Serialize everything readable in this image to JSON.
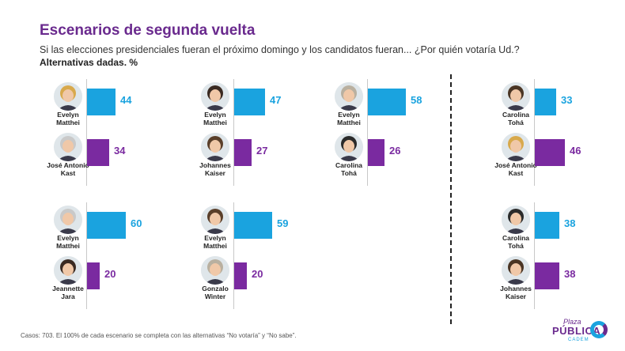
{
  "header": {
    "title": "Escenarios de segunda vuelta",
    "subtitle": "Si las elecciones presidenciales fueran el próximo domingo y los candidatos fueran... ¿Por quién votaría Ud.?",
    "note": "Alternativas dadas. %"
  },
  "footer": "Casos: 703. El 100% de cada escenario se completa con las alternativas “No votaría” y “No sabe”.",
  "logo": {
    "line1": "Plaza",
    "line2": "PÚBLICA",
    "line3": "CADEM"
  },
  "colors": {
    "blue": "#1aa3df",
    "purple": "#7a2aa0",
    "title": "#6a2a8e"
  },
  "chart_data": {
    "type": "bar",
    "orientation": "horizontal",
    "unit": "%",
    "scenarios": [
      {
        "candidates": [
          {
            "name": [
              "Evelyn",
              "Matthei"
            ],
            "value": 44
          },
          {
            "name": [
              "José Antonio",
              "Kast"
            ],
            "value": 34
          }
        ]
      },
      {
        "candidates": [
          {
            "name": [
              "Evelyn",
              "Matthei"
            ],
            "value": 47
          },
          {
            "name": [
              "Johannes",
              "Kaiser"
            ],
            "value": 27
          }
        ]
      },
      {
        "candidates": [
          {
            "name": [
              "Evelyn",
              "Matthei"
            ],
            "value": 58
          },
          {
            "name": [
              "Carolina",
              "Tohá"
            ],
            "value": 26
          }
        ]
      },
      {
        "candidates": [
          {
            "name": [
              "Carolina",
              "Tohá"
            ],
            "value": 33
          },
          {
            "name": [
              "José Antonio",
              "Kast"
            ],
            "value": 46
          }
        ]
      },
      {
        "candidates": [
          {
            "name": [
              "Evelyn",
              "Matthei"
            ],
            "value": 60
          },
          {
            "name": [
              "Jeannette",
              "Jara"
            ],
            "value": 20
          }
        ]
      },
      {
        "candidates": [
          {
            "name": [
              "Evelyn",
              "Matthei"
            ],
            "value": 59
          },
          {
            "name": [
              "Gonzalo",
              "Winter"
            ],
            "value": 20
          }
        ]
      },
      {
        "candidates": [
          {
            "name": [
              "Carolina",
              "Tohá"
            ],
            "value": 38
          },
          {
            "name": [
              "Johannes",
              "Kaiser"
            ],
            "value": 38
          }
        ]
      }
    ]
  }
}
